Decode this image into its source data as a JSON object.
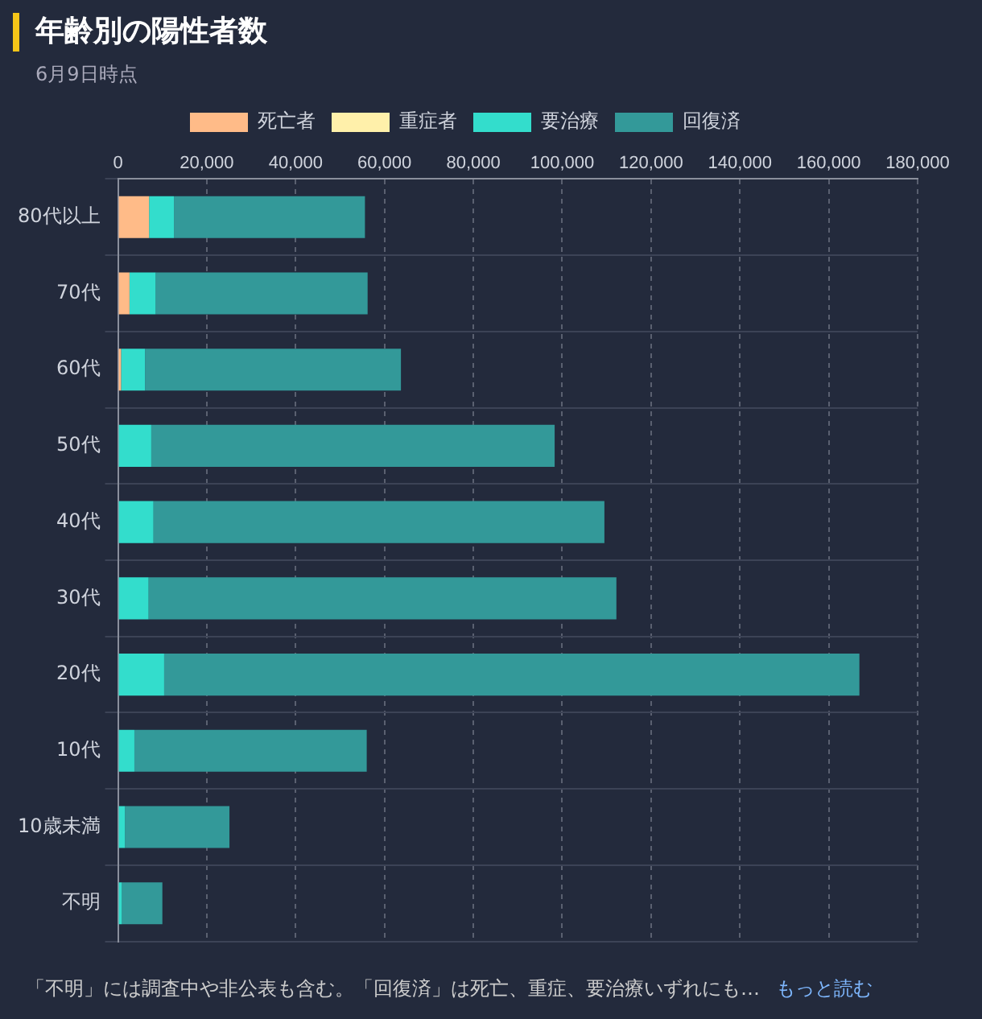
{
  "chart_data": {
    "type": "bar",
    "orientation": "horizontal",
    "stacked": true,
    "title": "年齢別の陽性者数",
    "subtitle": "6月9日時点",
    "categories": [
      "80代以上",
      "70代",
      "60代",
      "50代",
      "40代",
      "30代",
      "20代",
      "10代",
      "10歳未満",
      "不明"
    ],
    "series": [
      {
        "name": "死亡者",
        "color": "#ffbb88",
        "values": [
          7000,
          2600,
          700,
          null,
          null,
          null,
          null,
          null,
          null,
          null
        ]
      },
      {
        "name": "重症者",
        "color": "#fff0aa",
        "values": [
          null,
          null,
          null,
          null,
          null,
          null,
          null,
          null,
          null,
          null
        ]
      },
      {
        "name": "要治療",
        "color": "#33ddcc",
        "values": [
          5600,
          5900,
          5400,
          7500,
          8000,
          6900,
          10400,
          3700,
          1600,
          900
        ]
      },
      {
        "name": "回復済",
        "color": "#339999",
        "values": [
          43000,
          47700,
          57600,
          90800,
          101500,
          105300,
          156500,
          52300,
          23500,
          9100
        ]
      }
    ],
    "xlim": [
      0,
      180000
    ],
    "xticks": [
      0,
      {
        "value": 20000,
        "label": "20,000"
      },
      {
        "value": 40000,
        "label": "40,000"
      },
      {
        "value": 60000,
        "label": "60,000"
      },
      {
        "value": 80000,
        "label": "80,000"
      },
      {
        "value": 100000,
        "label": "100,000"
      },
      {
        "value": 120000,
        "label": "120,000"
      },
      {
        "value": 140000,
        "label": "140,000"
      },
      {
        "value": 160000,
        "label": "160,000"
      },
      {
        "value": 180000,
        "label": "180,000"
      }
    ],
    "grid": true,
    "legend": "top",
    "annotations": [
      "「不明」には調査中や非公表も含む。「回復済」は死亡、重症、要治療いずれにも…",
      "もっと読む"
    ]
  }
}
